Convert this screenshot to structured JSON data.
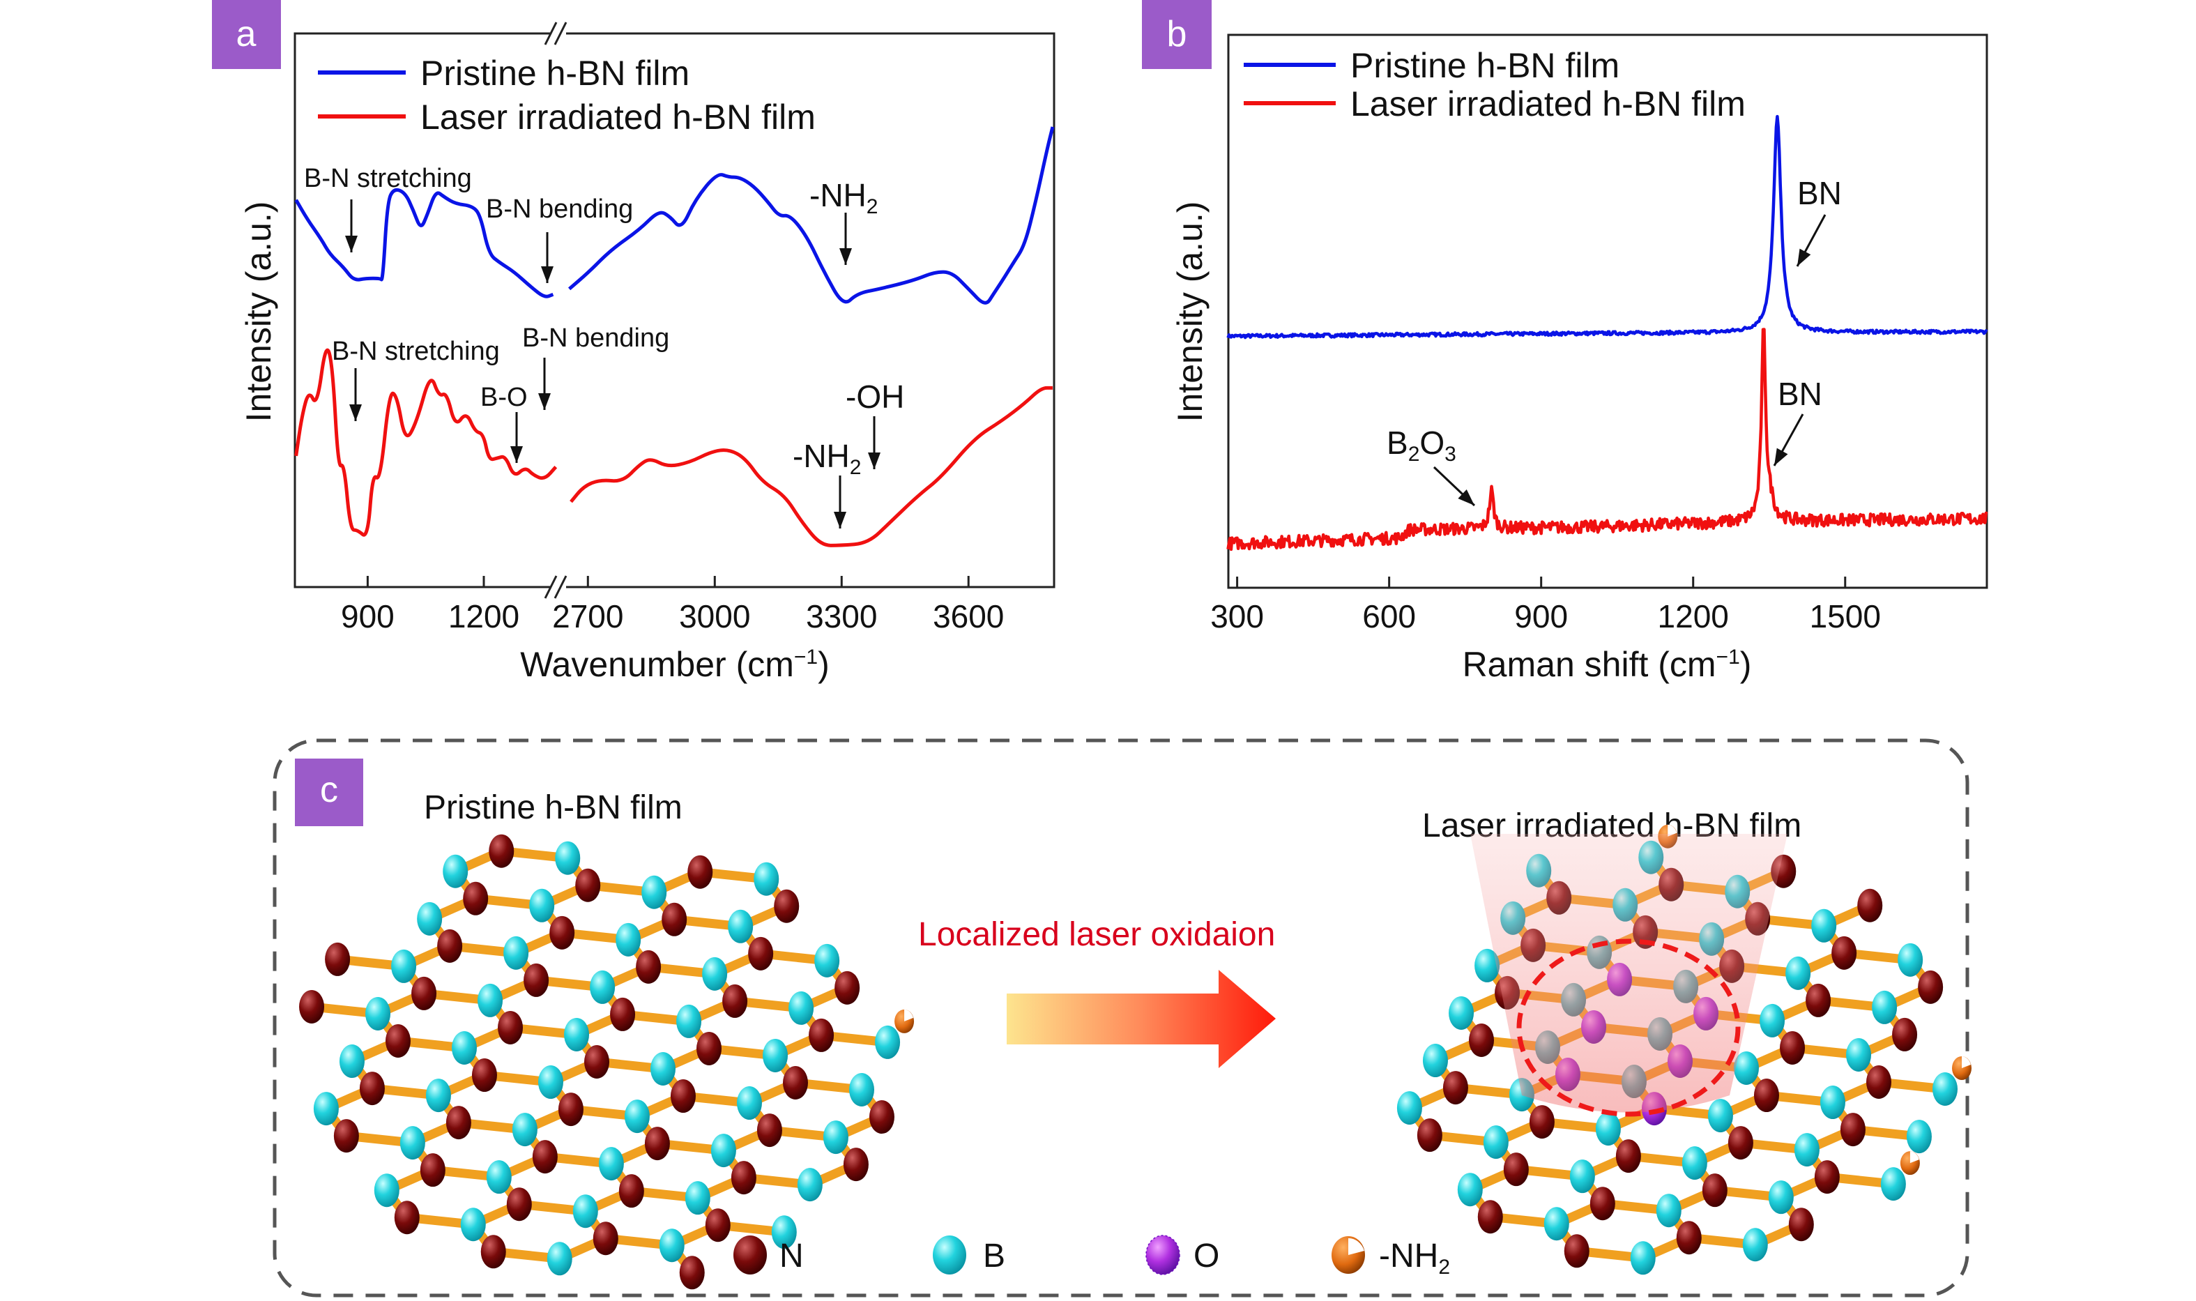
{
  "panels": {
    "a": {
      "label": "a"
    },
    "b": {
      "label": "b"
    },
    "c": {
      "label": "c",
      "pristine_title": "Pristine h-BN film",
      "irradiated_title": "Laser irradiated h-BN film",
      "process_label": "Localized laser oxidaion",
      "legend": [
        {
          "symbol": "N",
          "color": "#7a0a0a"
        },
        {
          "symbol": "B",
          "color": "#22d3de"
        },
        {
          "symbol": "O",
          "color": "#a838e0"
        },
        {
          "symbol": "-NH",
          "sub": "2",
          "color": "#e06a10"
        }
      ]
    }
  },
  "chart_data": [
    {
      "type": "line",
      "panel": "a",
      "xlabel": "Wavenumber (cm",
      "xlabel_sup": "−1",
      "xlabel_end": ")",
      "ylabel": "Intensity (a.u.)",
      "axis_break": true,
      "x_segments": [
        [
          712,
          1386
        ],
        [
          2650,
          3800
        ]
      ],
      "ylim": [
        0,
        100
      ],
      "x_ticks": [
        900,
        1200,
        2700,
        3000,
        3300,
        3600
      ],
      "legend_placement": "top-left",
      "series": [
        {
          "name": "Pristine h-BN film",
          "color": "#0a14e6",
          "segments": [
            [
              [
                715,
                69.9
              ],
              [
                744,
                66.4
              ],
              [
                780,
                62.8
              ],
              [
                802,
                60.1
              ],
              [
                838,
                57.7
              ],
              [
                864,
                55.3
              ],
              [
                896,
                55.7
              ],
              [
                932,
                55.7
              ],
              [
                939,
                55.3
              ],
              [
                951,
                69.6
              ],
              [
                968,
                72.0
              ],
              [
                997,
                71.2
              ],
              [
                1018,
                68.0
              ],
              [
                1037,
                64.5
              ],
              [
                1054,
                67.2
              ],
              [
                1076,
                71.6
              ],
              [
                1098,
                70.4
              ],
              [
                1127,
                69.2
              ],
              [
                1170,
                68.8
              ],
              [
                1191,
                67.2
              ],
              [
                1213,
                60.1
              ],
              [
                1242,
                58.5
              ],
              [
                1278,
                56.9
              ],
              [
                1321,
                54.2
              ],
              [
                1357,
                52.2
              ],
              [
                1379,
                52.8
              ]
            ],
            [
              [
                2656,
                53.8
              ],
              [
                2703,
                56.9
              ],
              [
                2755,
                60.9
              ],
              [
                2822,
                64.5
              ],
              [
                2868,
                68.0
              ],
              [
                2894,
                66.9
              ],
              [
                2921,
                64.5
              ],
              [
                2954,
                70.0
              ],
              [
                3006,
                74.8
              ],
              [
                3033,
                74.0
              ],
              [
                3059,
                74.0
              ],
              [
                3092,
                72.4
              ],
              [
                3125,
                69.6
              ],
              [
                3152,
                66.9
              ],
              [
                3178,
                67.2
              ],
              [
                3218,
                63.3
              ],
              [
                3258,
                56.9
              ],
              [
                3304,
                50.6
              ],
              [
                3337,
                53.0
              ],
              [
                3390,
                53.8
              ],
              [
                3469,
                55.3
              ],
              [
                3522,
                56.9
              ],
              [
                3561,
                56.8
              ],
              [
                3600,
                53.8
              ],
              [
                3640,
                50.6
              ],
              [
                3660,
                53.0
              ],
              [
                3680,
                55.3
              ],
              [
                3706,
                58.5
              ],
              [
                3733,
                61.7
              ],
              [
                3759,
                69.6
              ],
              [
                3786,
                79.1
              ],
              [
                3799,
                83.1
              ]
            ]
          ]
        },
        {
          "name": "Laser irradiated h-BN film",
          "color": "#f01010",
          "segments": [
            [
              [
                715,
                23.6
              ],
              [
                730,
                30.8
              ],
              [
                748,
                35.5
              ],
              [
                769,
                32.4
              ],
              [
                792,
                44.2
              ],
              [
                809,
                40.3
              ],
              [
                824,
                21.3
              ],
              [
                839,
                22.4
              ],
              [
                855,
                10.2
              ],
              [
                874,
                10.2
              ],
              [
                900,
                8.6
              ],
              [
                913,
                20.5
              ],
              [
                932,
                18.9
              ],
              [
                956,
                35.1
              ],
              [
                975,
                34.7
              ],
              [
                997,
                26.0
              ],
              [
                1026,
                29.6
              ],
              [
                1062,
                38.7
              ],
              [
                1084,
                34.3
              ],
              [
                1104,
                35.1
              ],
              [
                1126,
                28.8
              ],
              [
                1155,
                31.6
              ],
              [
                1177,
                28.0
              ],
              [
                1199,
                27.6
              ],
              [
                1213,
                22.8
              ],
              [
                1235,
                23.2
              ],
              [
                1256,
                23.6
              ],
              [
                1278,
                19.7
              ],
              [
                1307,
                21.6
              ],
              [
                1328,
                20.1
              ],
              [
                1357,
                19.3
              ],
              [
                1386,
                21.6
              ]
            ],
            [
              [
                2660,
                15.3
              ],
              [
                2690,
                18.1
              ],
              [
                2729,
                19.3
              ],
              [
                2782,
                18.9
              ],
              [
                2822,
                22.0
              ],
              [
                2848,
                23.2
              ],
              [
                2888,
                21.6
              ],
              [
                2940,
                22.4
              ],
              [
                2993,
                24.4
              ],
              [
                3033,
                24.8
              ],
              [
                3072,
                23.2
              ],
              [
                3112,
                18.9
              ],
              [
                3165,
                16.5
              ],
              [
                3205,
                11.7
              ],
              [
                3251,
                7.4
              ],
              [
                3297,
                7.4
              ],
              [
                3363,
                7.8
              ],
              [
                3416,
                11.7
              ],
              [
                3482,
                16.5
              ],
              [
                3535,
                19.7
              ],
              [
                3614,
                26.8
              ],
              [
                3680,
                30.0
              ],
              [
                3733,
                33.1
              ],
              [
                3772,
                35.9
              ],
              [
                3799,
                35.9
              ]
            ]
          ]
        }
      ],
      "annotations": [
        {
          "text": "B-N stretching",
          "series": "Pristine h-BN film",
          "x": 865
        },
        {
          "text": "B-N bending",
          "series": "Pristine h-BN film",
          "x": 1365
        },
        {
          "text": "-NH",
          "sub": "2",
          "series": "Pristine h-BN film",
          "x": 3310
        },
        {
          "text": "B-N stretching",
          "series": "Laser irradiated h-BN film",
          "x": 870
        },
        {
          "text": "B-N bending",
          "series": "Laser irradiated h-BN film",
          "x": 1360
        },
        {
          "text": "B-O",
          "series": "Laser irradiated h-BN film",
          "x": 1300
        },
        {
          "text": "-OH",
          "series": "Laser irradiated h-BN film",
          "x": 3380
        },
        {
          "text": "-NH",
          "sub": "2",
          "series": "Laser irradiated h-BN film",
          "x": 3297
        }
      ]
    },
    {
      "type": "line",
      "panel": "b",
      "xlabel": "Raman shift (cm",
      "xlabel_sup": "−1",
      "xlabel_end": ")",
      "ylabel": "Intensity (a.u.)",
      "xlim": [
        282,
        1780
      ],
      "ylim": [
        0,
        100
      ],
      "x_ticks": [
        300,
        600,
        900,
        1200,
        1500
      ],
      "legend_placement": "top-left",
      "series": [
        {
          "name": "Pristine h-BN film",
          "color": "#0a14e6",
          "baseline": [
            [
              282,
              45.5
            ],
            [
              1000,
              46.0
            ],
            [
              1780,
              46.3
            ]
          ],
          "peaks": [
            {
              "x": 1366,
              "intensity": 85
            }
          ]
        },
        {
          "name": "Laser irradiated h-BN film",
          "color": "#f01010",
          "baseline": [
            [
              282,
              8.0
            ],
            [
              620,
              9.0
            ],
            [
              640,
              10.5
            ],
            [
              1000,
              11.0
            ],
            [
              1330,
              12.0
            ],
            [
              1780,
              12.5
            ]
          ],
          "peaks": [
            {
              "x": 802,
              "intensity": 17.5
            },
            {
              "x": 1339,
              "intensity": 46
            }
          ]
        }
      ],
      "annotations": [
        {
          "text": "BN",
          "series": "Pristine h-BN film",
          "x": 1366
        },
        {
          "text": "BN",
          "series": "Laser irradiated h-BN film",
          "x": 1339
        },
        {
          "text": "B",
          "sub1": "2",
          "text2": "O",
          "sub2": "3",
          "series": "Laser irradiated h-BN film",
          "x": 802
        }
      ]
    }
  ]
}
